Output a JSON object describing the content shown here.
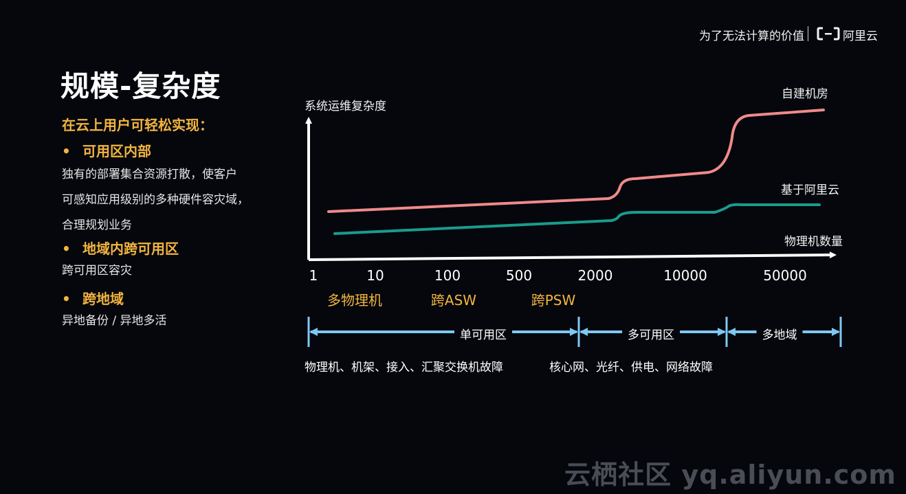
{
  "header": {
    "slogan": "为了无法计算的价值",
    "brand": "阿里云",
    "logo_icon": "aliyun-logo-icon"
  },
  "title": "规模-复杂度",
  "intro": "在云上用户可轻松实现：",
  "bullets": [
    {
      "marker": "•",
      "title": "可用区内部",
      "desc": [
        "独有的部署集合资源打散，使客户",
        "可感知应用级别的多种硬件容灾域，",
        "合理规划业务"
      ]
    },
    {
      "marker": "•",
      "title": "地域内跨可用区",
      "desc": [
        "跨可用区容灾"
      ]
    },
    {
      "marker": "•",
      "title": "跨地域",
      "desc": [
        "异地备份 / 异地多活"
      ]
    }
  ],
  "chart": {
    "y_axis_label": "系统运维复杂度",
    "x_axis_label": "物理机数量",
    "x_ticks": [
      "1",
      "10",
      "100",
      "500",
      "2000",
      "10000",
      "50000"
    ],
    "annotations": [
      "多物理机",
      "跨ASW",
      "跨PSW"
    ],
    "series": [
      {
        "name": "自建机房",
        "color": "#f08a8a"
      },
      {
        "name": "基于阿里云",
        "color": "#1a9c8c"
      }
    ],
    "zones": [
      "单可用区",
      "多可用区",
      "多地域"
    ],
    "zone_color": "#7ec8f2",
    "faults": [
      "物理机、机架、接入、汇聚交换机故障",
      "核心网、光纤、供电、网络故障"
    ]
  },
  "watermark": "云栖社区 yq.aliyun.com"
}
